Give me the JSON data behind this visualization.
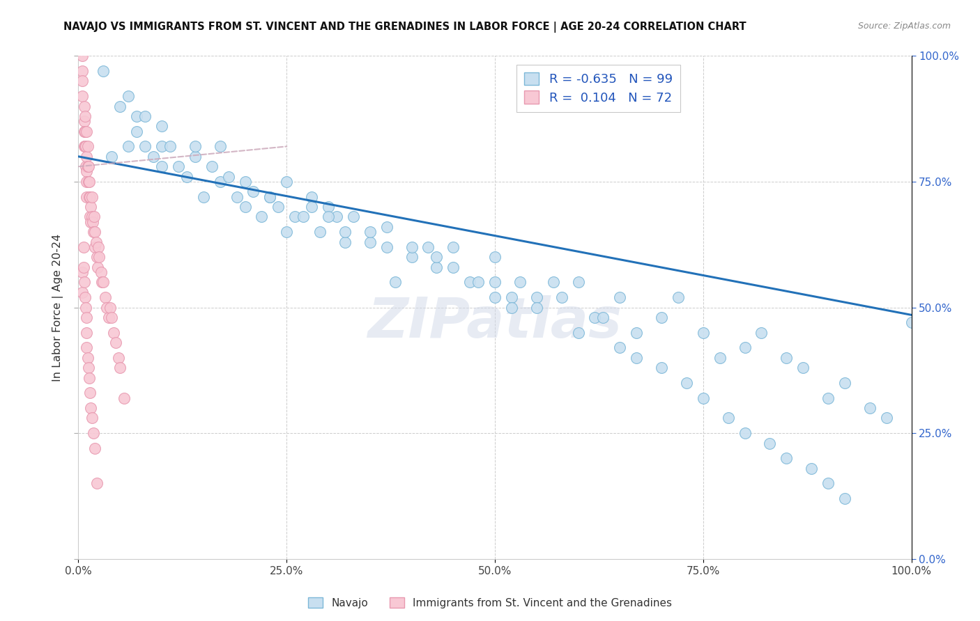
{
  "title": "NAVAJO VS IMMIGRANTS FROM ST. VINCENT AND THE GRENADINES IN LABOR FORCE | AGE 20-24 CORRELATION CHART",
  "source": "Source: ZipAtlas.com",
  "ylabel": "In Labor Force | Age 20-24",
  "xlim": [
    0.0,
    1.0
  ],
  "ylim": [
    0.0,
    1.0
  ],
  "xtick_labels": [
    "0.0%",
    "25.0%",
    "50.0%",
    "75.0%",
    "100.0%"
  ],
  "xtick_values": [
    0.0,
    0.25,
    0.5,
    0.75,
    1.0
  ],
  "ytick_labels_right": [
    "100.0%",
    "75.0%",
    "50.0%",
    "25.0%",
    "0.0%"
  ],
  "ytick_values": [
    1.0,
    0.75,
    0.5,
    0.25,
    0.0
  ],
  "blue_R": -0.635,
  "blue_N": 99,
  "pink_R": 0.104,
  "pink_N": 72,
  "blue_scatter_color": "#c8dff0",
  "blue_scatter_edge": "#7db8d8",
  "pink_scatter_color": "#f8c8d4",
  "pink_scatter_edge": "#e899b0",
  "blue_line_color": "#2271b8",
  "pink_line_color": "#ccaabb",
  "watermark": "ZIPatlas",
  "background_color": "#ffffff",
  "grid_color": "#cccccc",
  "blue_line_x0": 0.0,
  "blue_line_y0": 0.8,
  "blue_line_x1": 1.0,
  "blue_line_y1": 0.485,
  "pink_line_x0": 0.0,
  "pink_line_y0": 0.78,
  "pink_line_x1": 0.25,
  "pink_line_y1": 0.82,
  "navajo_x": [
    0.04,
    0.05,
    0.06,
    0.07,
    0.07,
    0.08,
    0.09,
    0.1,
    0.1,
    0.11,
    0.12,
    0.13,
    0.14,
    0.15,
    0.16,
    0.17,
    0.18,
    0.19,
    0.2,
    0.21,
    0.22,
    0.23,
    0.24,
    0.25,
    0.26,
    0.27,
    0.28,
    0.29,
    0.3,
    0.31,
    0.32,
    0.33,
    0.35,
    0.37,
    0.38,
    0.4,
    0.42,
    0.43,
    0.45,
    0.47,
    0.5,
    0.5,
    0.52,
    0.53,
    0.55,
    0.57,
    0.6,
    0.62,
    0.65,
    0.67,
    0.7,
    0.72,
    0.75,
    0.77,
    0.8,
    0.82,
    0.85,
    0.87,
    0.9,
    0.92,
    0.95,
    0.97,
    1.0,
    0.03,
    0.06,
    0.08,
    0.1,
    0.14,
    0.17,
    0.2,
    0.23,
    0.25,
    0.28,
    0.3,
    0.32,
    0.35,
    0.37,
    0.4,
    0.43,
    0.45,
    0.48,
    0.5,
    0.52,
    0.55,
    0.58,
    0.6,
    0.63,
    0.65,
    0.67,
    0.7,
    0.73,
    0.75,
    0.78,
    0.8,
    0.83,
    0.85,
    0.88,
    0.9,
    0.92
  ],
  "navajo_y": [
    0.8,
    0.9,
    0.82,
    0.85,
    0.88,
    0.82,
    0.8,
    0.82,
    0.78,
    0.82,
    0.78,
    0.76,
    0.8,
    0.72,
    0.78,
    0.75,
    0.76,
    0.72,
    0.7,
    0.73,
    0.68,
    0.72,
    0.7,
    0.65,
    0.68,
    0.68,
    0.72,
    0.65,
    0.7,
    0.68,
    0.63,
    0.68,
    0.63,
    0.66,
    0.55,
    0.6,
    0.62,
    0.58,
    0.62,
    0.55,
    0.6,
    0.55,
    0.52,
    0.55,
    0.52,
    0.55,
    0.55,
    0.48,
    0.52,
    0.45,
    0.48,
    0.52,
    0.45,
    0.4,
    0.42,
    0.45,
    0.4,
    0.38,
    0.32,
    0.35,
    0.3,
    0.28,
    0.47,
    0.97,
    0.92,
    0.88,
    0.86,
    0.82,
    0.82,
    0.75,
    0.72,
    0.75,
    0.7,
    0.68,
    0.65,
    0.65,
    0.62,
    0.62,
    0.6,
    0.58,
    0.55,
    0.52,
    0.5,
    0.5,
    0.52,
    0.45,
    0.48,
    0.42,
    0.4,
    0.38,
    0.35,
    0.32,
    0.28,
    0.25,
    0.23,
    0.2,
    0.18,
    0.15,
    0.12
  ],
  "pink_x": [
    0.005,
    0.005,
    0.005,
    0.005,
    0.007,
    0.007,
    0.007,
    0.007,
    0.008,
    0.008,
    0.008,
    0.009,
    0.009,
    0.01,
    0.01,
    0.01,
    0.01,
    0.01,
    0.011,
    0.011,
    0.012,
    0.012,
    0.013,
    0.013,
    0.014,
    0.014,
    0.015,
    0.015,
    0.016,
    0.016,
    0.017,
    0.018,
    0.019,
    0.02,
    0.02,
    0.021,
    0.022,
    0.023,
    0.024,
    0.025,
    0.027,
    0.028,
    0.03,
    0.032,
    0.034,
    0.036,
    0.038,
    0.04,
    0.042,
    0.045,
    0.048,
    0.05,
    0.055,
    0.005,
    0.005,
    0.006,
    0.006,
    0.007,
    0.008,
    0.009,
    0.01,
    0.01,
    0.01,
    0.011,
    0.012,
    0.013,
    0.014,
    0.015,
    0.016,
    0.018,
    0.02,
    0.022
  ],
  "pink_y": [
    1.0,
    0.97,
    0.95,
    0.92,
    0.9,
    0.87,
    0.85,
    0.82,
    0.88,
    0.85,
    0.82,
    0.82,
    0.78,
    0.85,
    0.8,
    0.77,
    0.75,
    0.72,
    0.82,
    0.78,
    0.78,
    0.75,
    0.75,
    0.72,
    0.72,
    0.68,
    0.7,
    0.67,
    0.72,
    0.68,
    0.67,
    0.65,
    0.68,
    0.65,
    0.62,
    0.63,
    0.6,
    0.58,
    0.62,
    0.6,
    0.57,
    0.55,
    0.55,
    0.52,
    0.5,
    0.48,
    0.5,
    0.48,
    0.45,
    0.43,
    0.4,
    0.38,
    0.32,
    0.57,
    0.53,
    0.62,
    0.58,
    0.55,
    0.52,
    0.5,
    0.48,
    0.45,
    0.42,
    0.4,
    0.38,
    0.36,
    0.33,
    0.3,
    0.28,
    0.25,
    0.22,
    0.15
  ]
}
